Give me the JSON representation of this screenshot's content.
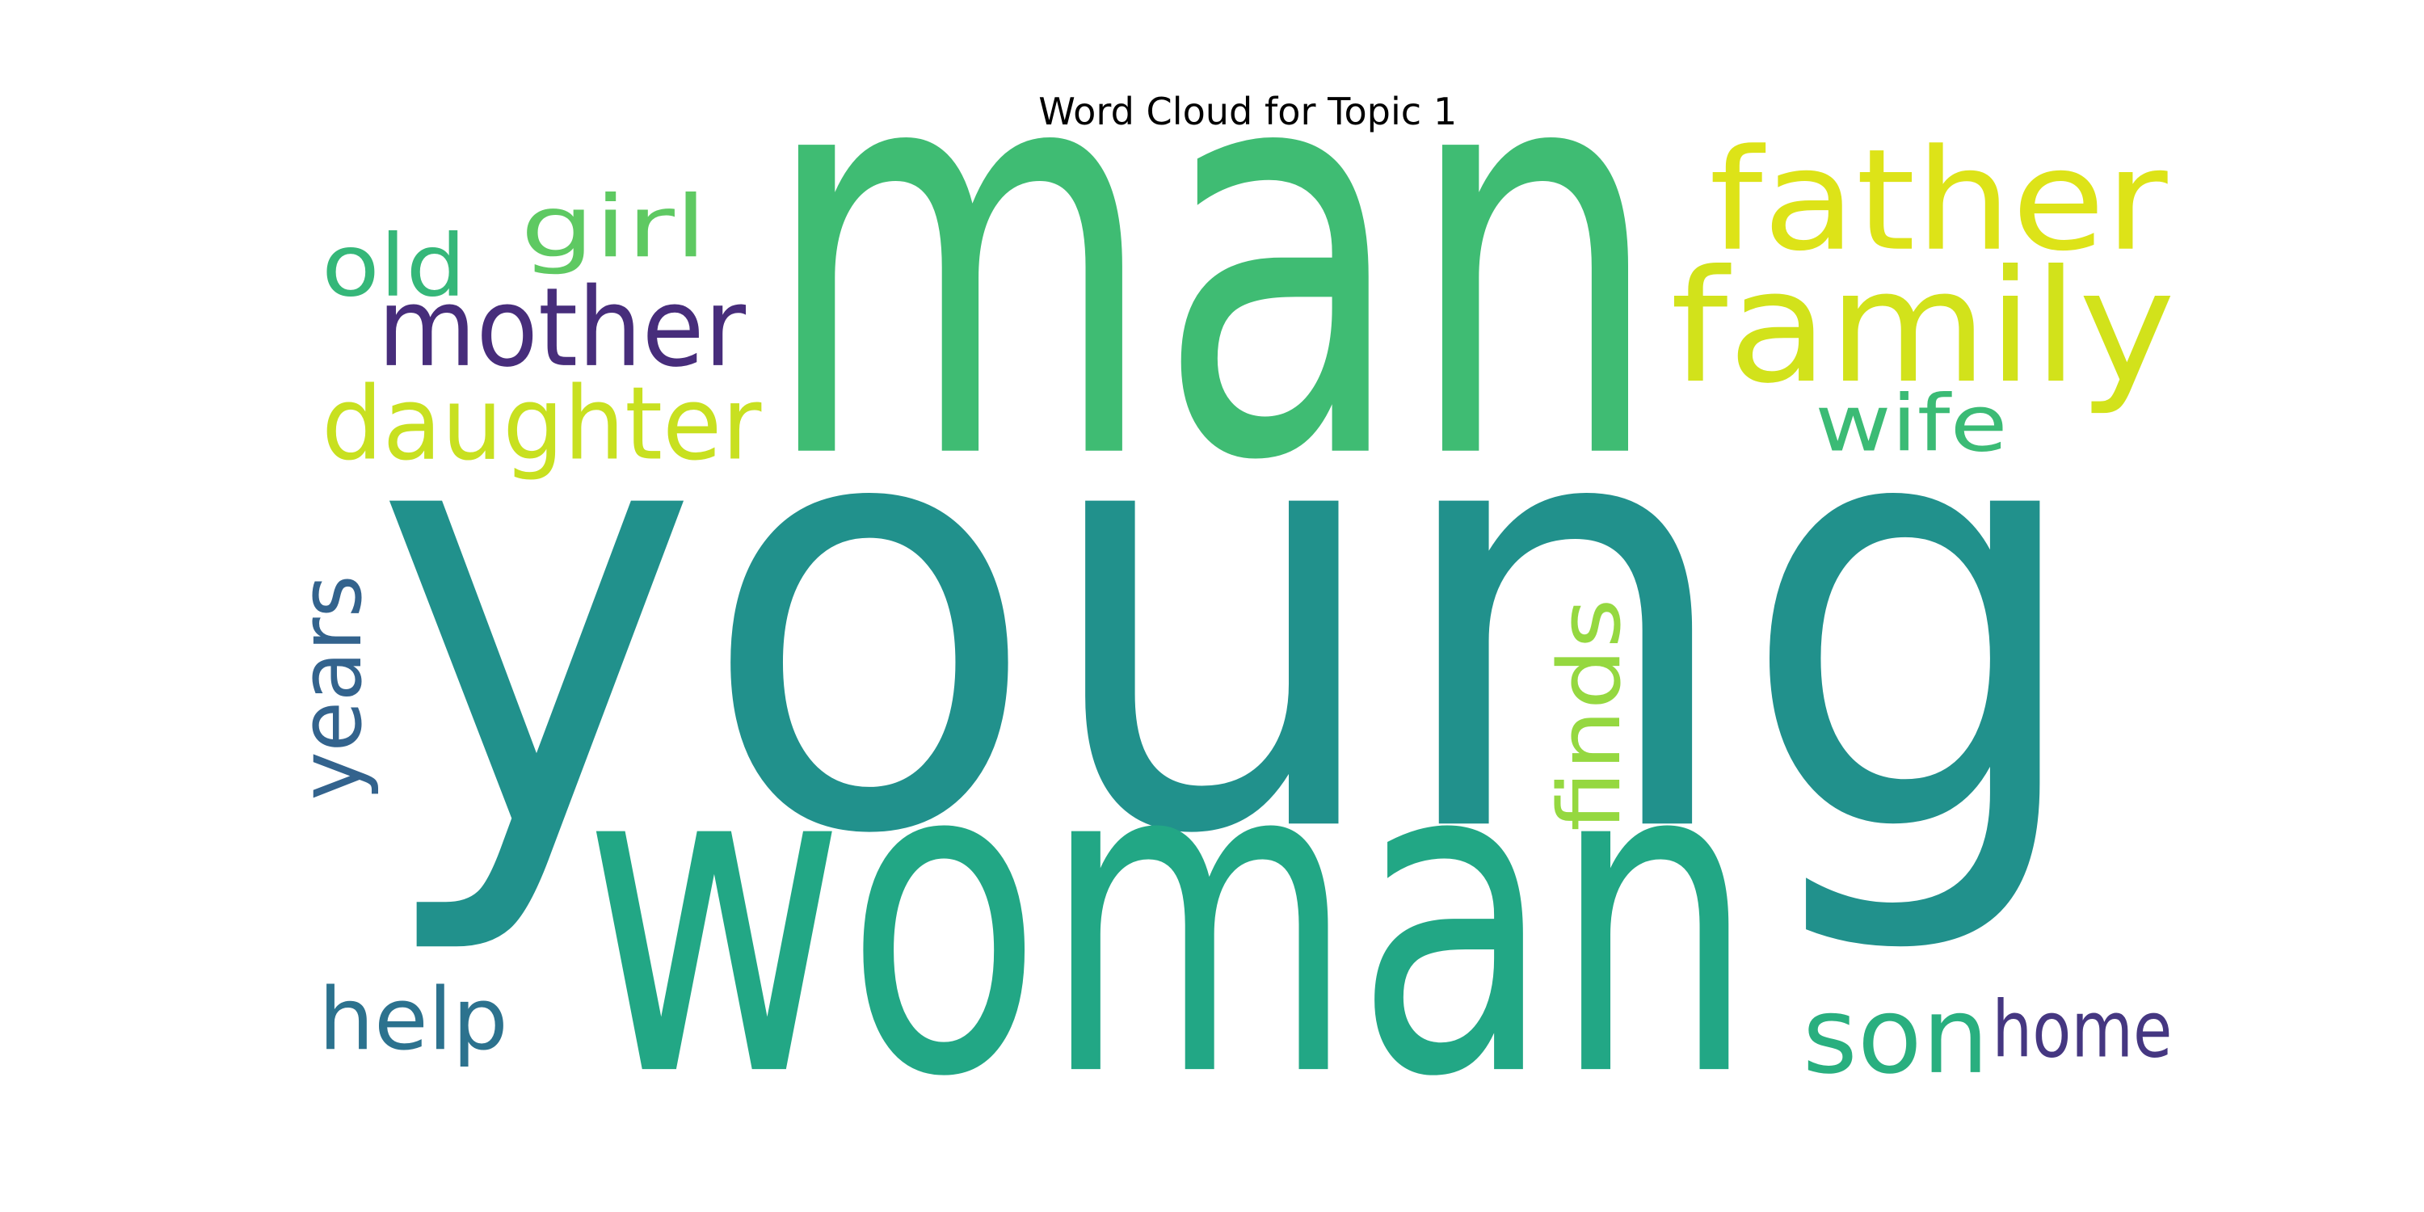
{
  "chart_data": {
    "type": "wordcloud",
    "title": "Word Cloud for Topic 1",
    "words": [
      {
        "text": "young",
        "color": "#21918c"
      },
      {
        "text": "man",
        "color": "#3fbc73"
      },
      {
        "text": "woman",
        "color": "#22a785"
      },
      {
        "text": "father",
        "color": "#dde318"
      },
      {
        "text": "family",
        "color": "#d2e21b"
      },
      {
        "text": "mother",
        "color": "#472d7b"
      },
      {
        "text": "girl",
        "color": "#5ec962"
      },
      {
        "text": "old",
        "color": "#35b779"
      },
      {
        "text": "daughter",
        "color": "#c8e020"
      },
      {
        "text": "wife",
        "color": "#3bbb75"
      },
      {
        "text": "years",
        "color": "#33638d"
      },
      {
        "text": "finds",
        "color": "#95d840"
      },
      {
        "text": "help",
        "color": "#2c728e"
      },
      {
        "text": "son",
        "color": "#29af7f"
      },
      {
        "text": "home",
        "color": "#453781"
      }
    ]
  }
}
